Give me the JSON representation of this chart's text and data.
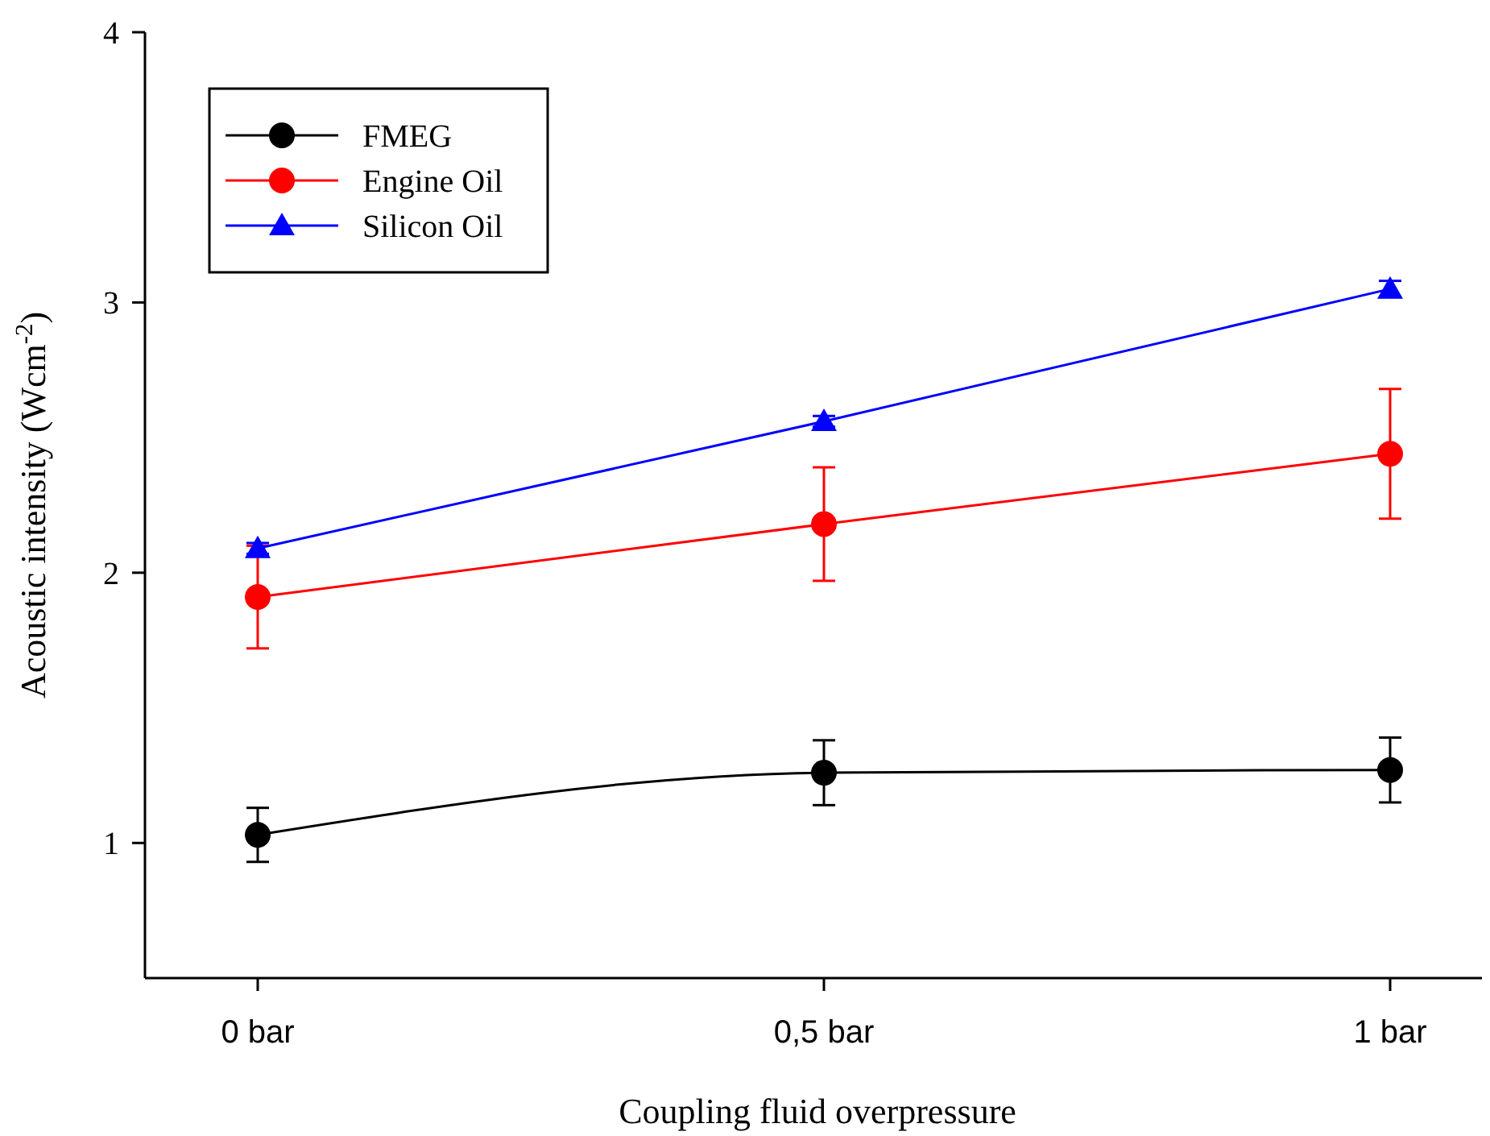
{
  "chart_data": {
    "type": "line",
    "xlabel": "Coupling fluid overpressure",
    "ylabel": "Acoustic intensity (Wcm$^{-2}$)",
    "categories": [
      "0 bar",
      "0,5 bar",
      "1 bar"
    ],
    "series": [
      {
        "name": "FMEG",
        "color": "#000000",
        "marker": "circle",
        "values": [
          1.03,
          1.26,
          1.27
        ],
        "errors": [
          0.1,
          0.12,
          0.12
        ]
      },
      {
        "name": "Engine Oil",
        "color": "#ff0000",
        "marker": "circle",
        "values": [
          1.91,
          2.18,
          2.44
        ],
        "errors": [
          0.19,
          0.21,
          0.24
        ]
      },
      {
        "name": "Silicon Oil",
        "color": "#0000ff",
        "marker": "triangle",
        "values": [
          2.09,
          2.56,
          3.05
        ],
        "errors": [
          0.02,
          0.02,
          0.03
        ]
      }
    ],
    "ylim": [
      0.5,
      4
    ],
    "yticks": [
      1,
      2,
      3,
      4
    ],
    "grid": false,
    "legend": "top left"
  }
}
